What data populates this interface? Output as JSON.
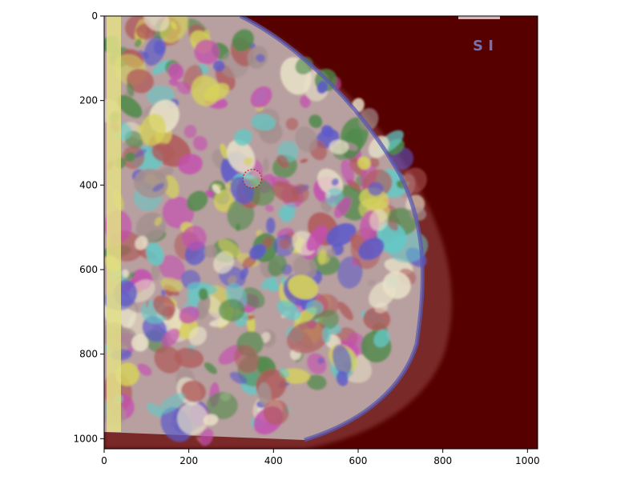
{
  "image": {
    "x_range": [
      0,
      1024
    ],
    "y_range": [
      0,
      1024
    ],
    "y_inverted": true,
    "background_color": "#560000",
    "overlay_label": "S I",
    "overlay_label_color": "#7a6fa8",
    "marker_center": [
      350,
      385
    ],
    "marker_radius": 22,
    "marker_color": "#d11b1b",
    "segment_colors": [
      "#c44fb0",
      "#5d5ac9",
      "#a48f8f",
      "#d6d35a",
      "#63c9c6",
      "#4f8a4a",
      "#b05a5a",
      "#e8e1c8"
    ]
  },
  "axes": {
    "x_ticks": [
      0,
      200,
      400,
      600,
      800,
      1000
    ],
    "x_tick_labels": [
      "0",
      "200",
      "400",
      "600",
      "800",
      "1000"
    ],
    "y_ticks": [
      0,
      200,
      400,
      600,
      800,
      1000
    ],
    "y_tick_labels": [
      "0",
      "200",
      "400",
      "600",
      "800",
      "1000"
    ]
  }
}
